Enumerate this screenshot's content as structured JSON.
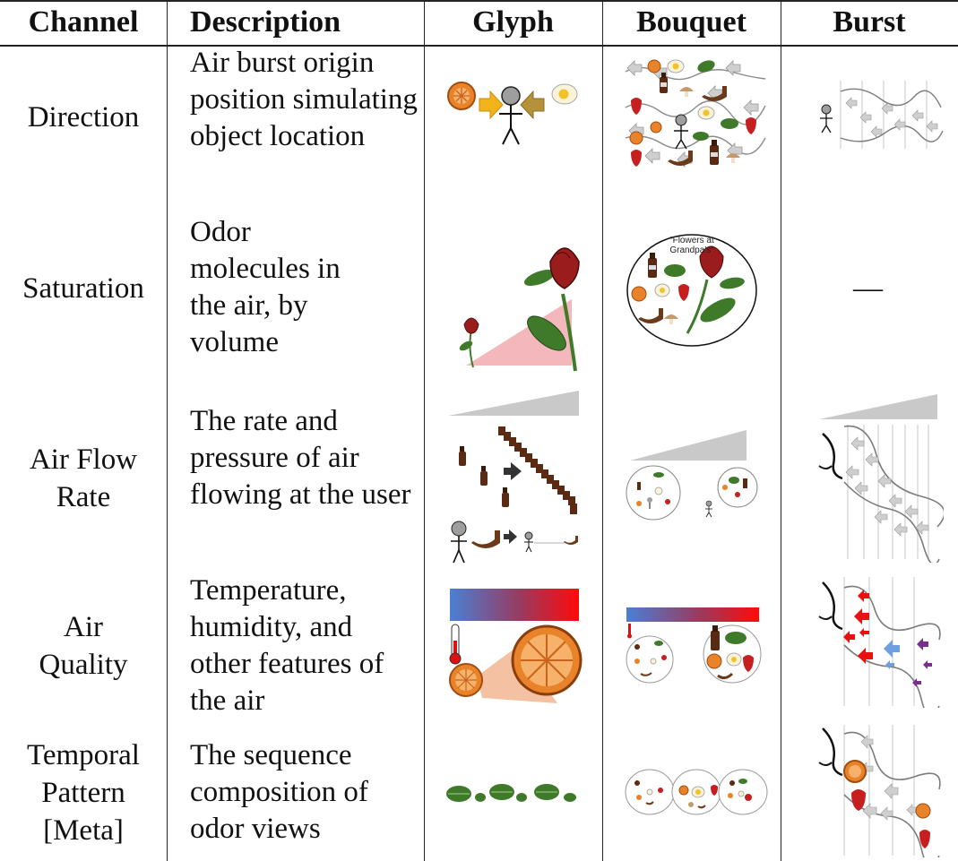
{
  "headers": [
    "Channel",
    "Description",
    "Glyph",
    "Bouquet",
    "Burst"
  ],
  "rows": [
    {
      "channel": "Direction",
      "description": "Air burst origin position simulating object location"
    },
    {
      "channel": "Saturation",
      "description": "Odor molecules in the air, by volume",
      "burst": "—",
      "bouquet_caption": "“Flowers at Grandpa’s”"
    },
    {
      "channel": "Air Flow Rate",
      "description": "The rate and pressure of air flowing at the user"
    },
    {
      "channel": "Air Quality",
      "description": "Temperature, humidity, and other features of the air"
    },
    {
      "channel": "Temporal Pattern [Meta]",
      "description": "The sequence composition of odor views"
    }
  ],
  "colors": {
    "orange": "#e8832a",
    "rose": "#9b1c1c",
    "leaf": "#3f7a2a",
    "cold": "#4a7fd4",
    "hot": "#e81010",
    "arrow_gray": "#c8c8c8",
    "pink": "#f4b8bc"
  },
  "icons": [
    "orange-icon",
    "egg-icon",
    "stick-figure-icon",
    "bottle-icon",
    "pipe-icon",
    "mushroom-icon",
    "strawberry-icon",
    "leaf-icon",
    "rose-icon",
    "thermometer-icon",
    "nose-icon",
    "arrow-icon"
  ]
}
